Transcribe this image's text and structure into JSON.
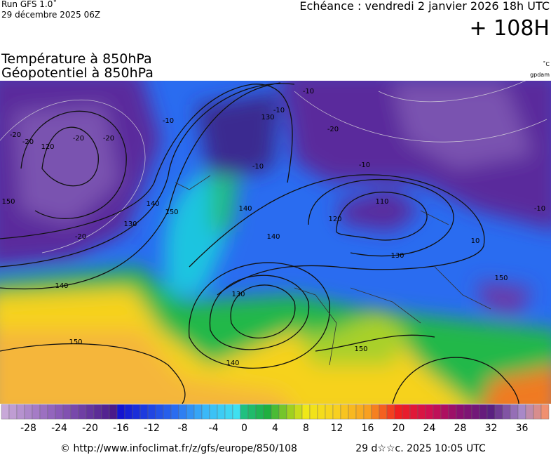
{
  "header": {
    "run": "Run GFS 1.0˚",
    "run_date": "29 décembre 2025 06Z",
    "valid": "Echéance : vendredi 2 janvier 2026 18h UTC",
    "lead": "+ 108H"
  },
  "titles": {
    "temperature": "Température à 850hPa",
    "geopotential": "Géopotentiel à 850hPa",
    "temp_unit": "˚C",
    "geo_unit": "gpdam"
  },
  "map": {
    "contour_labels": [
      "-20",
      "120",
      "-20",
      "-20",
      "-10",
      "-10",
      "-20",
      "130",
      "140",
      "150",
      "140",
      "130",
      "150",
      "140",
      "-10",
      "110",
      "120",
      "-10",
      "10",
      "130",
      "-10",
      "150",
      "140",
      "130",
      "150",
      "140",
      "150",
      "-20",
      "-20",
      "-10"
    ]
  },
  "colorbar": {
    "ticks": [
      -28,
      -24,
      -20,
      -16,
      -12,
      -8,
      -4,
      0,
      4,
      8,
      12,
      16,
      20,
      24,
      28,
      32,
      36
    ]
  },
  "footer": {
    "source": "© http://www.infoclimat.fr/z/gfs/europe/850/108",
    "generated": "29 d☆☆c. 2025 10:05 UTC"
  }
}
